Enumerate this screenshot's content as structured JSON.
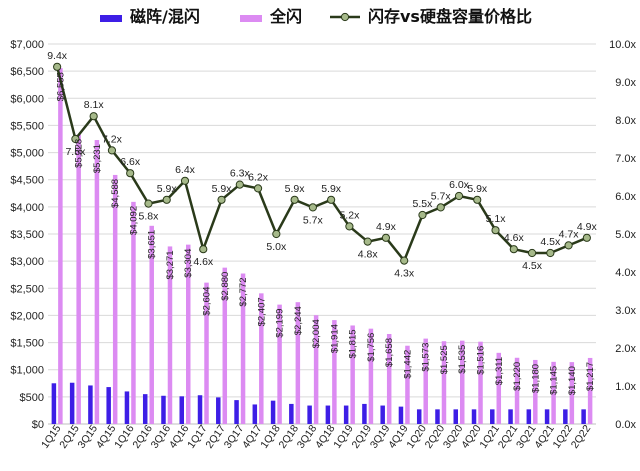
{
  "colors": {
    "hdd_bar": "#3d1ee6",
    "ssd_bar": "#dc8bf2",
    "ratio_line": "#2a3a1a",
    "ratio_marker": "#a6b98a",
    "gridline": "#d9d9d9"
  },
  "chart_data": {
    "type": "bar",
    "categories": [
      "1Q15",
      "2Q15",
      "3Q15",
      "4Q15",
      "1Q16",
      "2Q16",
      "3Q16",
      "4Q16",
      "1Q17",
      "2Q17",
      "3Q17",
      "4Q17",
      "1Q18",
      "2Q18",
      "3Q18",
      "4Q18",
      "1Q19",
      "2Q19",
      "3Q19",
      "4Q19",
      "1Q20",
      "2Q20",
      "3Q20",
      "4Q20",
      "1Q21",
      "2Q21",
      "3Q21",
      "4Q21",
      "1Q22",
      "2Q22"
    ],
    "series": [
      {
        "name": "磁阵/混闪",
        "kind": "bar",
        "axis": "left",
        "values": [
          750,
          760,
          710,
          680,
          600,
          550,
          520,
          510,
          530,
          490,
          440,
          360,
          430,
          370,
          340,
          340,
          340,
          370,
          340,
          320,
          270,
          270,
          270,
          270,
          270,
          270,
          270,
          270,
          270,
          270
        ]
      },
      {
        "name": "全闪",
        "kind": "bar",
        "axis": "left",
        "values": [
          6555,
          5328,
          5231,
          4588,
          4092,
          3651,
          3271,
          3304,
          2604,
          2880,
          2772,
          2407,
          2199,
          2244,
          2004,
          1914,
          1815,
          1756,
          1658,
          1442,
          1573,
          1525,
          1535,
          1516,
          1311,
          1220,
          1180,
          1145,
          1140,
          1217
        ],
        "labels": [
          "$6,555",
          "$5,328",
          "$5,231",
          "$4,588",
          "$4,092",
          "$3,651",
          "$3,271",
          "$3,304",
          "$2,604",
          "$2,880",
          "$2,772",
          "$2,407",
          "$2,199",
          "$2,244",
          "$2,004",
          "$1,914",
          "$1,815",
          "$1,756",
          "$1,658",
          "$1,442",
          "$1,573",
          "$1,525",
          "$1,535",
          "$1,516",
          "$1,311",
          "$1,220",
          "$1,180",
          "$1,145",
          "$1,140",
          "$1,217"
        ]
      },
      {
        "name": "闪存vs硬盘容量价格比",
        "kind": "line",
        "axis": "right",
        "values": [
          9.4,
          7.5,
          8.1,
          7.2,
          6.6,
          5.8,
          5.9,
          6.4,
          4.6,
          5.9,
          6.3,
          6.2,
          5.0,
          5.9,
          5.7,
          5.9,
          5.2,
          4.8,
          4.9,
          4.3,
          5.5,
          5.7,
          6.0,
          5.9,
          5.1,
          4.6,
          4.5,
          4.5,
          4.7,
          4.9
        ],
        "labels": [
          "9.4x",
          "7.5x",
          "8.1x",
          "7.2x",
          "6.6x",
          "5.8x",
          "5.9x",
          "6.4x",
          "4.6x",
          "5.9x",
          "6.3x",
          "6.2x",
          "5.0x",
          "5.9x",
          "5.7x",
          "5.9x",
          "5.2x",
          "4.8x",
          "4.9x",
          "4.3x",
          "5.5x",
          "5.7x",
          "6.0x",
          "5.9x",
          "5.1x",
          "4.6x",
          "4.5x",
          "4.5x",
          "4.7x",
          "4.9x"
        ]
      }
    ],
    "y_left": {
      "lim": [
        0,
        7000
      ],
      "ticks": [
        "$0",
        "$500",
        "$1,000",
        "$1,500",
        "$2,000",
        "$2,500",
        "$3,000",
        "$3,500",
        "$4,000",
        "$4,500",
        "$5,000",
        "$5,500",
        "$6,000",
        "$6,500",
        "$7,000"
      ]
    },
    "y_right": {
      "lim": [
        0,
        10
      ],
      "ticks": [
        "0.0x",
        "1.0x",
        "2.0x",
        "3.0x",
        "4.0x",
        "5.0x",
        "6.0x",
        "7.0x",
        "8.0x",
        "9.0x",
        "10.0x"
      ]
    },
    "grid": true,
    "legend_position": "top"
  }
}
